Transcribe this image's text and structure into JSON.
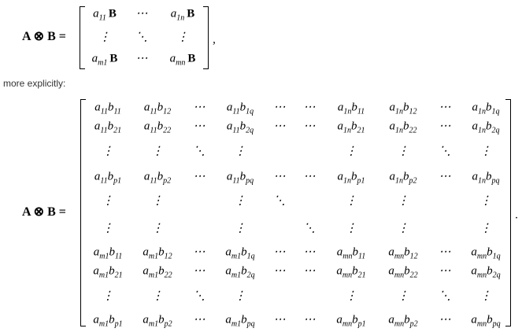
{
  "equation_1": {
    "lhs": "A ⊗ B =",
    "matrix": [
      [
        [
          "a",
          "11",
          "B"
        ],
        [
          "⋯"
        ],
        [
          "a",
          "1n",
          "B"
        ]
      ],
      [
        [
          "⋮"
        ],
        [
          "⋱"
        ],
        [
          "⋮"
        ]
      ],
      [
        [
          "a",
          "m1",
          "B"
        ],
        [
          "⋯"
        ],
        [
          "a",
          "mn",
          "B"
        ]
      ]
    ],
    "trailing": ","
  },
  "text": "more explicitly:",
  "equation_2": {
    "lhs": "A ⊗ B =",
    "matrix": [
      [
        [
          "a",
          "11",
          "b",
          "11"
        ],
        [
          "a",
          "11",
          "b",
          "12"
        ],
        [
          "⋯"
        ],
        [
          "a",
          "11",
          "b",
          "1q"
        ],
        [
          "⋯"
        ],
        [
          "⋯"
        ],
        [
          "a",
          "1n",
          "b",
          "11"
        ],
        [
          "a",
          "1n",
          "b",
          "12"
        ],
        [
          "⋯"
        ],
        [
          "a",
          "1n",
          "b",
          "1q"
        ]
      ],
      [
        [
          "a",
          "11",
          "b",
          "21"
        ],
        [
          "a",
          "11",
          "b",
          "22"
        ],
        [
          "⋯"
        ],
        [
          "a",
          "11",
          "b",
          "2q"
        ],
        [
          "⋯"
        ],
        [
          "⋯"
        ],
        [
          "a",
          "1n",
          "b",
          "21"
        ],
        [
          "a",
          "1n",
          "b",
          "22"
        ],
        [
          "⋯"
        ],
        [
          "a",
          "1n",
          "b",
          "2q"
        ]
      ],
      [
        [
          "⋮"
        ],
        [
          "⋮"
        ],
        [
          "⋱"
        ],
        [
          "⋮"
        ],
        [],
        [],
        [
          "⋮"
        ],
        [
          "⋮"
        ],
        [
          "⋱"
        ],
        [
          "⋮"
        ]
      ],
      [
        [
          "a",
          "11",
          "b",
          "p1"
        ],
        [
          "a",
          "11",
          "b",
          "p2"
        ],
        [
          "⋯"
        ],
        [
          "a",
          "11",
          "b",
          "pq"
        ],
        [
          "⋯"
        ],
        [
          "⋯"
        ],
        [
          "a",
          "1n",
          "b",
          "p1"
        ],
        [
          "a",
          "1n",
          "b",
          "p2"
        ],
        [
          "⋯"
        ],
        [
          "a",
          "1n",
          "b",
          "pq"
        ]
      ],
      [
        [
          "⋮"
        ],
        [
          "⋮"
        ],
        [],
        [
          "⋮"
        ],
        [
          "⋱"
        ],
        [],
        [
          "⋮"
        ],
        [
          "⋮"
        ],
        [],
        [
          "⋮"
        ]
      ],
      [
        [
          "⋮"
        ],
        [
          "⋮"
        ],
        [],
        [
          "⋮"
        ],
        [],
        [
          "⋱"
        ],
        [
          "⋮"
        ],
        [
          "⋮"
        ],
        [],
        [
          "⋮"
        ]
      ],
      [
        [
          "a",
          "m1",
          "b",
          "11"
        ],
        [
          "a",
          "m1",
          "b",
          "12"
        ],
        [
          "⋯"
        ],
        [
          "a",
          "m1",
          "b",
          "1q"
        ],
        [
          "⋯"
        ],
        [
          "⋯"
        ],
        [
          "a",
          "mn",
          "b",
          "11"
        ],
        [
          "a",
          "mn",
          "b",
          "12"
        ],
        [
          "⋯"
        ],
        [
          "a",
          "mn",
          "b",
          "1q"
        ]
      ],
      [
        [
          "a",
          "m1",
          "b",
          "21"
        ],
        [
          "a",
          "m1",
          "b",
          "22"
        ],
        [
          "⋯"
        ],
        [
          "a",
          "m1",
          "b",
          "2q"
        ],
        [
          "⋯"
        ],
        [
          "⋯"
        ],
        [
          "a",
          "mn",
          "b",
          "21"
        ],
        [
          "a",
          "mn",
          "b",
          "22"
        ],
        [
          "⋯"
        ],
        [
          "a",
          "mn",
          "b",
          "2q"
        ]
      ],
      [
        [
          "⋮"
        ],
        [
          "⋮"
        ],
        [
          "⋱"
        ],
        [
          "⋮"
        ],
        [],
        [],
        [
          "⋮"
        ],
        [
          "⋮"
        ],
        [
          "⋱"
        ],
        [
          "⋮"
        ]
      ],
      [
        [
          "a",
          "m1",
          "b",
          "p1"
        ],
        [
          "a",
          "m1",
          "b",
          "p2"
        ],
        [
          "⋯"
        ],
        [
          "a",
          "m1",
          "b",
          "pq"
        ],
        [
          "⋯"
        ],
        [
          "⋯"
        ],
        [
          "a",
          "mn",
          "b",
          "p1"
        ],
        [
          "a",
          "mn",
          "b",
          "p2"
        ],
        [
          "⋯"
        ],
        [
          "a",
          "mn",
          "b",
          "pq"
        ]
      ]
    ],
    "trailing": "."
  }
}
